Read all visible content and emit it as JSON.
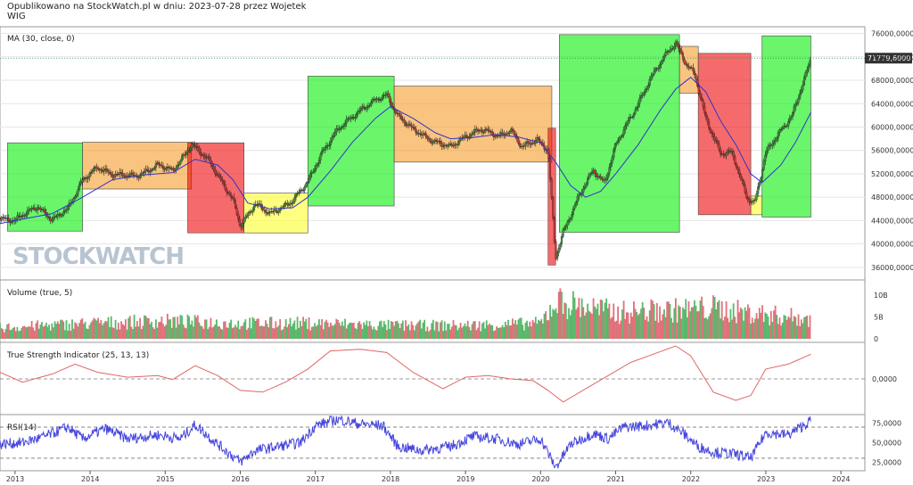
{
  "header": {
    "line1": "Opublikowano na StockWatch.pl w dniu: 2023-07-28 przez Wojetek",
    "line2": "WIG"
  },
  "watermark": "STOCKWATCH",
  "colors": {
    "up": "#3a8f3a",
    "down": "#cc3333",
    "ma": "#3333cc",
    "tsi": "#e06666",
    "rsi": "#4444dd",
    "green_box": "#00ee00",
    "orange_box": "#f59a23",
    "red_box": "#ee0000",
    "yellow_box": "#ffff22",
    "last_value_bg": "#333333"
  },
  "chart_data": [
    {
      "type": "candlestick",
      "label": "MA (30, close, 0)",
      "x_ticks": [
        "2013",
        "2014",
        "2015",
        "2016",
        "2017",
        "2018",
        "2019",
        "2020",
        "2021",
        "2022",
        "2023",
        "2024"
      ],
      "y_ticks": [
        "76000,0000",
        "72000,0000",
        "68000,0000",
        "64000,0000",
        "60000,0000",
        "56000,0000",
        "52000,0000",
        "48000,0000",
        "44000,0000",
        "40000,0000",
        "36000,0000"
      ],
      "ylim": [
        34000,
        77000
      ],
      "last_value": "71779,6000",
      "close_path": [
        [
          2012.8,
          44500
        ],
        [
          2013.0,
          44000
        ],
        [
          2013.3,
          46500
        ],
        [
          2013.5,
          44000
        ],
        [
          2013.7,
          46000
        ],
        [
          2013.9,
          51000
        ],
        [
          2014.1,
          53000
        ],
        [
          2014.3,
          52000
        ],
        [
          2014.6,
          51500
        ],
        [
          2014.9,
          53500
        ],
        [
          2015.1,
          52500
        ],
        [
          2015.35,
          57000
        ],
        [
          2015.6,
          54000
        ],
        [
          2015.9,
          47500
        ],
        [
          2016.0,
          43000
        ],
        [
          2016.2,
          47000
        ],
        [
          2016.4,
          45000
        ],
        [
          2016.7,
          47500
        ],
        [
          2016.9,
          50500
        ],
        [
          2017.1,
          56000
        ],
        [
          2017.3,
          59500
        ],
        [
          2017.6,
          63000
        ],
        [
          2017.8,
          64500
        ],
        [
          2017.95,
          65500
        ],
        [
          2018.1,
          62000
        ],
        [
          2018.3,
          59500
        ],
        [
          2018.6,
          57500
        ],
        [
          2018.8,
          56500
        ],
        [
          2019.0,
          58500
        ],
        [
          2019.2,
          59500
        ],
        [
          2019.45,
          58500
        ],
        [
          2019.6,
          59500
        ],
        [
          2019.75,
          56500
        ],
        [
          2019.95,
          58000
        ],
        [
          2020.1,
          56000
        ],
        [
          2020.2,
          37500
        ],
        [
          2020.3,
          42000
        ],
        [
          2020.5,
          48000
        ],
        [
          2020.7,
          52500
        ],
        [
          2020.85,
          50500
        ],
        [
          2021.0,
          57000
        ],
        [
          2021.2,
          61500
        ],
        [
          2021.45,
          68000
        ],
        [
          2021.65,
          72000
        ],
        [
          2021.8,
          74500
        ],
        [
          2021.95,
          70500
        ],
        [
          2022.05,
          69000
        ],
        [
          2022.2,
          61500
        ],
        [
          2022.4,
          55500
        ],
        [
          2022.55,
          55500
        ],
        [
          2022.75,
          48000
        ],
        [
          2022.85,
          47000
        ],
        [
          2023.0,
          55500
        ],
        [
          2023.2,
          59500
        ],
        [
          2023.35,
          62000
        ],
        [
          2023.5,
          67500
        ],
        [
          2023.6,
          71780
        ]
      ],
      "ma30": [
        [
          2012.8,
          43500
        ],
        [
          2013.0,
          44000
        ],
        [
          2013.5,
          45200
        ],
        [
          2013.9,
          48000
        ],
        [
          2014.3,
          51000
        ],
        [
          2014.7,
          51800
        ],
        [
          2015.1,
          52200
        ],
        [
          2015.4,
          54500
        ],
        [
          2015.7,
          53500
        ],
        [
          2015.9,
          51000
        ],
        [
          2016.1,
          47000
        ],
        [
          2016.4,
          46000
        ],
        [
          2016.7,
          46200
        ],
        [
          2016.9,
          48000
        ],
        [
          2017.2,
          52500
        ],
        [
          2017.5,
          57500
        ],
        [
          2017.8,
          61500
        ],
        [
          2018.0,
          63500
        ],
        [
          2018.3,
          61500
        ],
        [
          2018.6,
          59000
        ],
        [
          2018.8,
          58000
        ],
        [
          2019.1,
          58200
        ],
        [
          2019.4,
          58700
        ],
        [
          2019.7,
          58300
        ],
        [
          2020.0,
          57300
        ],
        [
          2020.2,
          54000
        ],
        [
          2020.4,
          50000
        ],
        [
          2020.6,
          48000
        ],
        [
          2020.8,
          49000
        ],
        [
          2021.0,
          52000
        ],
        [
          2021.3,
          57000
        ],
        [
          2021.6,
          63000
        ],
        [
          2021.8,
          66500
        ],
        [
          2022.0,
          68500
        ],
        [
          2022.2,
          66000
        ],
        [
          2022.4,
          61000
        ],
        [
          2022.6,
          57000
        ],
        [
          2022.8,
          52000
        ],
        [
          2022.95,
          50500
        ],
        [
          2023.2,
          53500
        ],
        [
          2023.4,
          57500
        ],
        [
          2023.6,
          62500
        ]
      ],
      "phase_boxes": [
        {
          "color": "green",
          "x0": 2012.9,
          "x1": 2013.9,
          "y0": 42200,
          "y1": 57300
        },
        {
          "color": "orange",
          "x0": 2013.9,
          "x1": 2015.35,
          "y0": 49400,
          "y1": 57400
        },
        {
          "color": "red",
          "x0": 2015.3,
          "x1": 2016.05,
          "y0": 41900,
          "y1": 57300
        },
        {
          "color": "yellow",
          "x0": 2016.05,
          "x1": 2016.9,
          "y0": 41900,
          "y1": 48700
        },
        {
          "color": "green",
          "x0": 2016.9,
          "x1": 2018.05,
          "y0": 46500,
          "y1": 68700
        },
        {
          "color": "orange",
          "x0": 2018.05,
          "x1": 2020.15,
          "y0": 54000,
          "y1": 67000
        },
        {
          "color": "red",
          "x0": 2020.1,
          "x1": 2020.2,
          "y0": 36400,
          "y1": 59800
        },
        {
          "color": "green",
          "x0": 2020.25,
          "x1": 2021.85,
          "y0": 42000,
          "y1": 75800
        },
        {
          "color": "orange",
          "x0": 2021.85,
          "x1": 2022.1,
          "y0": 65800,
          "y1": 73800
        },
        {
          "color": "red",
          "x0": 2022.1,
          "x1": 2022.8,
          "y0": 45000,
          "y1": 72600
        },
        {
          "color": "yellow",
          "x0": 2022.8,
          "x1": 2022.95,
          "y0": 45000,
          "y1": 48200
        },
        {
          "color": "green",
          "x0": 2022.95,
          "x1": 2023.6,
          "y0": 44600,
          "y1": 75600
        }
      ]
    },
    {
      "type": "bar",
      "label": "Volume (true, 5)",
      "y_ticks": [
        "10B",
        "5B",
        "0"
      ],
      "ylim": [
        0,
        13
      ],
      "profile": [
        [
          2012.8,
          2.5
        ],
        [
          2014.0,
          3.5
        ],
        [
          2015.0,
          4.0
        ],
        [
          2016.0,
          3.5
        ],
        [
          2017.0,
          3.5
        ],
        [
          2018.0,
          3.0
        ],
        [
          2019.0,
          3.0
        ],
        [
          2020.0,
          3.5
        ],
        [
          2020.2,
          8.5
        ],
        [
          2021.0,
          6.0
        ],
        [
          2021.8,
          6.5
        ],
        [
          2022.3,
          7.0
        ],
        [
          2022.7,
          6.0
        ],
        [
          2023.0,
          5.5
        ],
        [
          2023.6,
          4.5
        ]
      ]
    },
    {
      "type": "line",
      "label": "True Strength Indicator (25, 13, 13)",
      "y_ticks": [
        "0,0000"
      ],
      "ylim": [
        -1,
        1
      ],
      "values": [
        [
          2012.8,
          0.2
        ],
        [
          2013.1,
          -0.1
        ],
        [
          2013.5,
          0.15
        ],
        [
          2013.8,
          0.45
        ],
        [
          2014.1,
          0.2
        ],
        [
          2014.5,
          0.05
        ],
        [
          2014.9,
          0.1
        ],
        [
          2015.1,
          -0.02
        ],
        [
          2015.4,
          0.4
        ],
        [
          2015.7,
          0.1
        ],
        [
          2016.0,
          -0.35
        ],
        [
          2016.3,
          -0.4
        ],
        [
          2016.6,
          -0.1
        ],
        [
          2016.9,
          0.3
        ],
        [
          2017.2,
          0.85
        ],
        [
          2017.6,
          0.9
        ],
        [
          2017.95,
          0.8
        ],
        [
          2018.3,
          0.2
        ],
        [
          2018.7,
          -0.3
        ],
        [
          2019.0,
          0.05
        ],
        [
          2019.3,
          0.1
        ],
        [
          2019.6,
          0.0
        ],
        [
          2019.9,
          -0.05
        ],
        [
          2020.1,
          -0.35
        ],
        [
          2020.3,
          -0.7
        ],
        [
          2020.6,
          -0.3
        ],
        [
          2020.9,
          0.1
        ],
        [
          2021.2,
          0.5
        ],
        [
          2021.5,
          0.75
        ],
        [
          2021.8,
          1.0
        ],
        [
          2022.0,
          0.7
        ],
        [
          2022.3,
          -0.4
        ],
        [
          2022.6,
          -0.65
        ],
        [
          2022.8,
          -0.5
        ],
        [
          2023.0,
          0.3
        ],
        [
          2023.3,
          0.45
        ],
        [
          2023.6,
          0.75
        ]
      ]
    },
    {
      "type": "line",
      "label": "RSI(14)",
      "y_ticks": [
        "75,0000",
        "50,0000",
        "25,0000"
      ],
      "ylim": [
        15,
        85
      ],
      "levels": [
        70,
        30
      ],
      "values": [
        [
          2012.8,
          48
        ],
        [
          2013.1,
          50
        ],
        [
          2013.4,
          58
        ],
        [
          2013.7,
          70
        ],
        [
          2013.9,
          55
        ],
        [
          2014.2,
          68
        ],
        [
          2014.5,
          55
        ],
        [
          2014.9,
          60
        ],
        [
          2015.2,
          55
        ],
        [
          2015.4,
          73
        ],
        [
          2015.7,
          48
        ],
        [
          2016.0,
          25
        ],
        [
          2016.2,
          40
        ],
        [
          2016.5,
          45
        ],
        [
          2016.8,
          50
        ],
        [
          2017.0,
          72
        ],
        [
          2017.3,
          80
        ],
        [
          2017.6,
          74
        ],
        [
          2017.9,
          72
        ],
        [
          2018.1,
          45
        ],
        [
          2018.4,
          40
        ],
        [
          2018.8,
          45
        ],
        [
          2019.1,
          58
        ],
        [
          2019.4,
          55
        ],
        [
          2019.7,
          48
        ],
        [
          2020.0,
          55
        ],
        [
          2020.2,
          18
        ],
        [
          2020.4,
          48
        ],
        [
          2020.7,
          62
        ],
        [
          2020.9,
          55
        ],
        [
          2021.1,
          70
        ],
        [
          2021.4,
          72
        ],
        [
          2021.7,
          76
        ],
        [
          2021.9,
          62
        ],
        [
          2022.1,
          45
        ],
        [
          2022.3,
          38
        ],
        [
          2022.6,
          35
        ],
        [
          2022.8,
          30
        ],
        [
          2023.0,
          63
        ],
        [
          2023.3,
          60
        ],
        [
          2023.6,
          78
        ]
      ]
    }
  ]
}
